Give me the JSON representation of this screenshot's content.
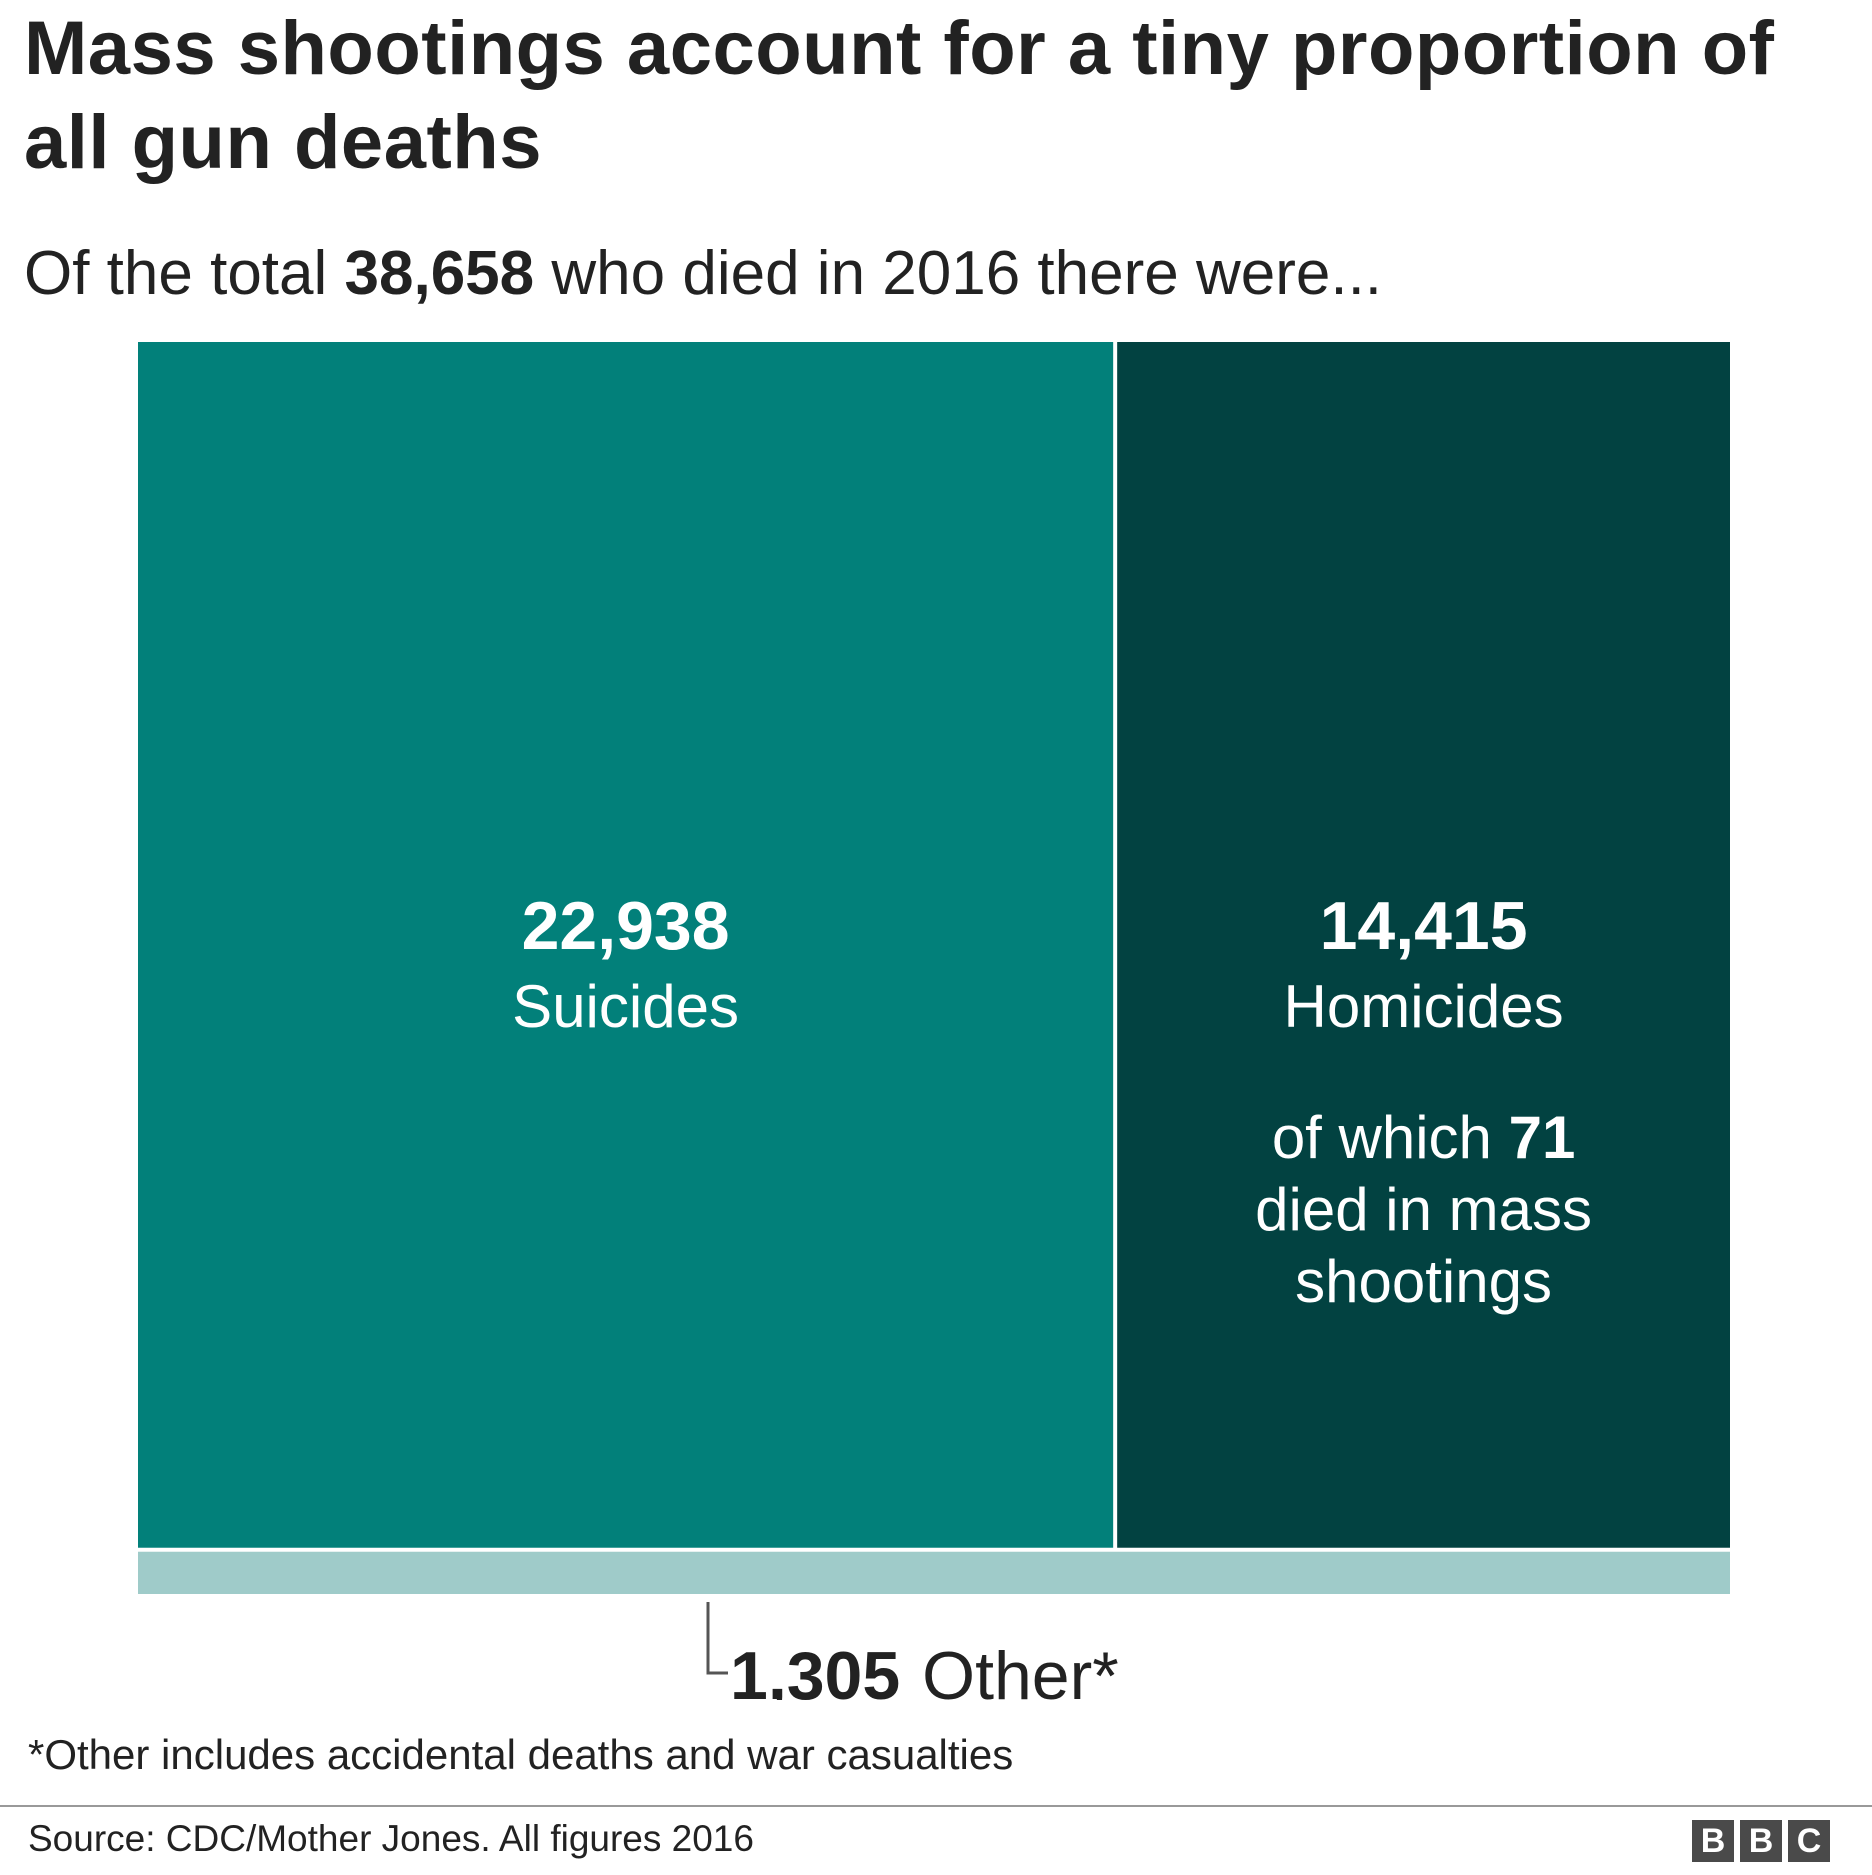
{
  "header": {
    "title": "Mass shootings account for a tiny proportion of all gun deaths",
    "subtitle_pre": "Of the total ",
    "subtitle_total": "38,658",
    "subtitle_post": " who died in 2016 there were..."
  },
  "colors": {
    "suicides": "#02807a",
    "homicides": "#024241",
    "other": "#9fcbc9"
  },
  "chart_data": {
    "type": "treemap",
    "total": 38658,
    "blocks": [
      {
        "id": "suicides",
        "value": 22938,
        "value_label": "22,938",
        "label": "Suicides"
      },
      {
        "id": "homicides",
        "value": 14415,
        "value_label": "14,415",
        "label": "Homicides",
        "note_pre": "of which ",
        "note_value": "71",
        "note_rest_1": "died in mass",
        "note_rest_2": "shootings",
        "mass_shooting_deaths": 71
      },
      {
        "id": "other",
        "value": 1305,
        "value_label": "1,305",
        "label": "Other*"
      }
    ]
  },
  "footer": {
    "footnote": "*Other includes accidental deaths and war casualties",
    "source": "Source: CDC/Mother Jones. All figures 2016",
    "logo_letters": [
      "B",
      "B",
      "C"
    ]
  }
}
